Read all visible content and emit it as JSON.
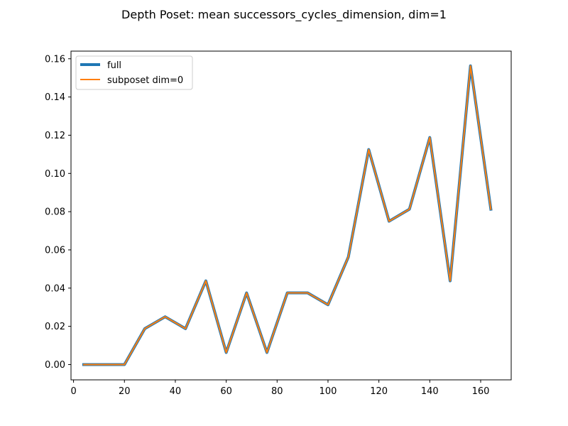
{
  "chart_data": {
    "type": "line",
    "title": "Depth Poset: mean successors_cycles_dimension, dim=1",
    "xlabel": "",
    "ylabel": "",
    "xlim": [
      -1.0,
      172.0
    ],
    "ylim": [
      -0.008,
      0.164
    ],
    "xticks": [
      0,
      20,
      40,
      60,
      80,
      100,
      120,
      140,
      160
    ],
    "xtick_labels": [
      "0",
      "20",
      "40",
      "60",
      "80",
      "100",
      "120",
      "140",
      "160"
    ],
    "yticks": [
      0.0,
      0.02,
      0.04,
      0.06,
      0.08,
      0.1,
      0.12,
      0.14,
      0.16
    ],
    "ytick_labels": [
      "0.00",
      "0.02",
      "0.04",
      "0.06",
      "0.08",
      "0.10",
      "0.12",
      "0.14",
      "0.16"
    ],
    "grid": false,
    "legend_position": "top-left",
    "x": [
      4,
      12,
      20,
      28,
      36,
      44,
      52,
      60,
      68,
      76,
      84,
      92,
      100,
      108,
      116,
      124,
      132,
      140,
      148,
      156,
      164
    ],
    "series": [
      {
        "name": "full",
        "color": "#1f77b4",
        "values": [
          0.0,
          0.0,
          0.0,
          0.0188,
          0.025,
          0.0188,
          0.0438,
          0.0063,
          0.0375,
          0.0063,
          0.0375,
          0.0375,
          0.0313,
          0.0563,
          0.1125,
          0.075,
          0.0813,
          0.1188,
          0.0438,
          0.1563,
          0.0813
        ]
      },
      {
        "name": "subposet dim=0",
        "color": "#ff7f0e",
        "values": [
          0.0,
          0.0,
          0.0,
          0.0188,
          0.025,
          0.0188,
          0.0438,
          0.0063,
          0.0375,
          0.0063,
          0.0375,
          0.0375,
          0.0313,
          0.0563,
          0.1125,
          0.075,
          0.0813,
          0.1188,
          0.0438,
          0.1563,
          0.0813
        ]
      }
    ]
  }
}
